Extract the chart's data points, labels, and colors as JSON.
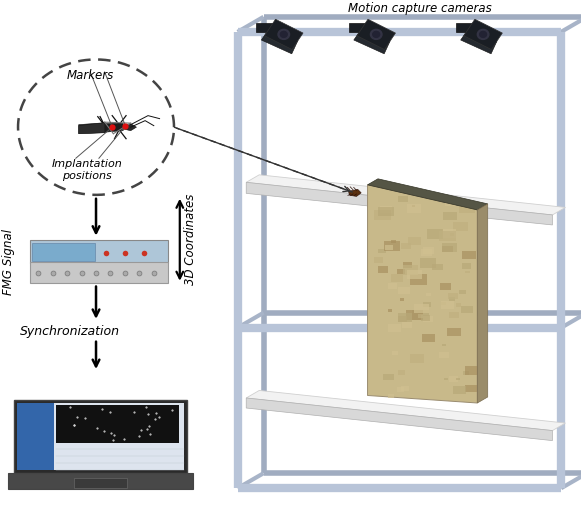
{
  "bg_color": "#ffffff",
  "motion_capture_label": "Motion capture cameras",
  "fmg_label": "FMG Signal",
  "markers_label": "Markers",
  "implantation_label": "Implantation\npositions",
  "sync_label": "Synchronization",
  "coord_label": "3D Coordinates",
  "fig_width": 5.82,
  "fig_height": 5.1,
  "frame_color": "#b8c4d8",
  "frame_lw": 6,
  "cam_color": "#1e1e1e",
  "shelf_top_color": "#eeeeee",
  "shelf_side_color": "#cccccc",
  "stone_color": "#c8b98a",
  "stone_dark": "#a89870"
}
